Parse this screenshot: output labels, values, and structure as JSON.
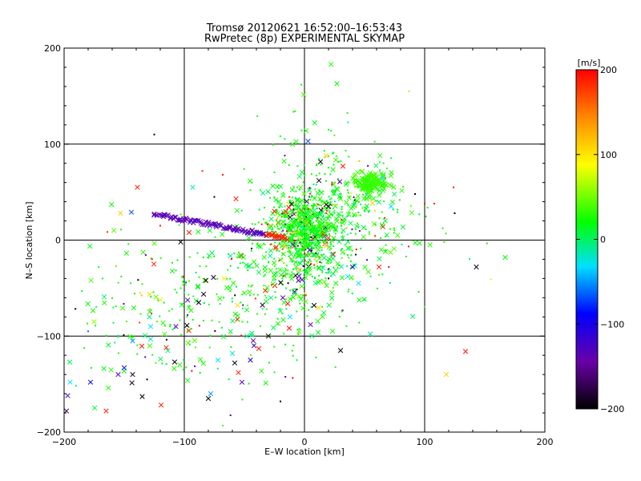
{
  "chart_data": {
    "type": "scatter",
    "title_line1": "Tromsø 20120621 16:52:00–16:53:43",
    "title_line2": "RwPretec (8p) EXPERIMENTAL SKYMAP",
    "xlabel": "E–W location [km]",
    "ylabel": "N–S location [km]",
    "xlim": [
      -200,
      200
    ],
    "ylim": [
      -200,
      200
    ],
    "xticks": [
      -200,
      -100,
      0,
      100,
      200
    ],
    "yticks": [
      -200,
      -100,
      0,
      100,
      200
    ],
    "xtick_labels": [
      "−200",
      "−100",
      "0",
      "100",
      "200"
    ],
    "ytick_labels": [
      "−200",
      "−100",
      "0",
      "100",
      "200"
    ],
    "grid": true,
    "colorbar": {
      "label": "[m/s]",
      "range": [
        -200,
        200
      ],
      "ticks": [
        200,
        100,
        0,
        -100,
        -200
      ],
      "tick_labels": [
        "200",
        "100",
        "0",
        "−100",
        "−200"
      ],
      "colors": [
        "#000000",
        "#6a00a8",
        "#0000ff",
        "#00e0ff",
        "#00ff00",
        "#ffff00",
        "#ff8800",
        "#ff0000"
      ]
    },
    "points": [
      {
        "x": -198,
        "y": -178,
        "v": -180,
        "m": "x"
      },
      {
        "x": -197,
        "y": -162,
        "v": -140,
        "m": "x"
      },
      {
        "x": -195,
        "y": -148,
        "v": -40,
        "m": "x"
      },
      {
        "x": -178,
        "y": -148,
        "v": -100,
        "m": "x"
      },
      {
        "x": -175,
        "y": -85,
        "v": 60,
        "m": "x"
      },
      {
        "x": -165,
        "y": -178,
        "v": 190,
        "m": "x"
      },
      {
        "x": -155,
        "y": -140,
        "v": -150,
        "m": "x"
      },
      {
        "x": -150,
        "y": -133,
        "v": -110,
        "m": "x"
      },
      {
        "x": -143,
        "y": -140,
        "v": -190,
        "m": "x"
      },
      {
        "x": -135,
        "y": -163,
        "v": -200,
        "m": "x"
      },
      {
        "x": -143,
        "y": -105,
        "v": -60,
        "m": "x"
      },
      {
        "x": -153,
        "y": 28,
        "v": 120,
        "m": "x"
      },
      {
        "x": -144,
        "y": 29,
        "v": -80,
        "m": "x"
      },
      {
        "x": -139,
        "y": 55,
        "v": 190,
        "m": "x"
      },
      {
        "x": -129,
        "y": -80,
        "v": -20,
        "m": "x"
      },
      {
        "x": -128,
        "y": -90,
        "v": -40,
        "m": "x"
      },
      {
        "x": -128,
        "y": -103,
        "v": -30,
        "m": "x"
      },
      {
        "x": -120,
        "y": -62,
        "v": 110,
        "m": "x"
      },
      {
        "x": -115,
        "y": -112,
        "v": 190,
        "m": "x"
      },
      {
        "x": -108,
        "y": -127,
        "v": -200,
        "m": "x"
      },
      {
        "x": -107,
        "y": -90,
        "v": -150,
        "m": "x"
      },
      {
        "x": -103,
        "y": -2,
        "v": -200,
        "m": "x"
      },
      {
        "x": -96,
        "y": 8,
        "v": 190,
        "m": "x"
      },
      {
        "x": -93,
        "y": 55,
        "v": -30,
        "m": "x"
      },
      {
        "x": -88,
        "y": -65,
        "v": -200,
        "m": "x"
      },
      {
        "x": -82,
        "y": -42,
        "v": -200,
        "m": "x"
      },
      {
        "x": -80,
        "y": -165,
        "v": -200,
        "m": "x"
      },
      {
        "x": -78,
        "y": -160,
        "v": -60,
        "m": "x"
      },
      {
        "x": -72,
        "y": -125,
        "v": -40,
        "m": "x"
      },
      {
        "x": -67,
        "y": -40,
        "v": 110,
        "m": "x"
      },
      {
        "x": -60,
        "y": -118,
        "v": -30,
        "m": "x"
      },
      {
        "x": -58,
        "y": -128,
        "v": -200,
        "m": "x"
      },
      {
        "x": -55,
        "y": -138,
        "v": 190,
        "m": "x"
      },
      {
        "x": -52,
        "y": -148,
        "v": -150,
        "m": "x"
      },
      {
        "x": -57,
        "y": 43,
        "v": 190,
        "m": "x"
      },
      {
        "x": -48,
        "y": -100,
        "v": -20,
        "m": "x"
      },
      {
        "x": -45,
        "y": -125,
        "v": -120,
        "m": "x"
      },
      {
        "x": -42,
        "y": -110,
        "v": -150,
        "m": "x"
      },
      {
        "x": -38,
        "y": -113,
        "v": 190,
        "m": "x"
      },
      {
        "x": -30,
        "y": -100,
        "v": -200,
        "m": "x"
      },
      {
        "x": -28,
        "y": -60,
        "v": -20,
        "m": "x"
      },
      {
        "x": -25,
        "y": 30,
        "v": 190,
        "m": "x"
      },
      {
        "x": -18,
        "y": -60,
        "v": -150,
        "m": "x"
      },
      {
        "x": -12,
        "y": -80,
        "v": -40,
        "m": "x"
      },
      {
        "x": -5,
        "y": -42,
        "v": -150,
        "m": "x"
      },
      {
        "x": 3,
        "y": 103,
        "v": -80,
        "m": "x"
      },
      {
        "x": 5,
        "y": -88,
        "v": -150,
        "m": "x"
      },
      {
        "x": 8,
        "y": -68,
        "v": -200,
        "m": "x"
      },
      {
        "x": 12,
        "y": 62,
        "v": -200,
        "m": "x"
      },
      {
        "x": 18,
        "y": 88,
        "v": 120,
        "m": "x"
      },
      {
        "x": 20,
        "y": 35,
        "v": -200,
        "m": "x"
      },
      {
        "x": 27,
        "y": 163,
        "v": 0,
        "m": "x"
      },
      {
        "x": 30,
        "y": -115,
        "v": -200,
        "m": "x"
      },
      {
        "x": 32,
        "y": 77,
        "v": 190,
        "m": "x"
      },
      {
        "x": 36,
        "y": -38,
        "v": -40,
        "m": "x"
      },
      {
        "x": 40,
        "y": -28,
        "v": -120,
        "m": "x"
      },
      {
        "x": 45,
        "y": -45,
        "v": -40,
        "m": "x"
      },
      {
        "x": 62,
        "y": -28,
        "v": 190,
        "m": "x"
      },
      {
        "x": 65,
        "y": 65,
        "v": -40,
        "m": "x"
      },
      {
        "x": 72,
        "y": 35,
        "v": -40,
        "m": "x"
      },
      {
        "x": 118,
        "y": -140,
        "v": 120,
        "m": "x"
      },
      {
        "x": 134,
        "y": -116,
        "v": 190,
        "m": "x"
      },
      {
        "x": 143,
        "y": -28,
        "v": -200,
        "m": "x"
      },
      {
        "x": 167,
        "y": -18,
        "v": 0,
        "m": "x"
      },
      {
        "x": -180,
        "y": -95,
        "v": -70,
        "m": "."
      },
      {
        "x": -125,
        "y": 110,
        "v": -200,
        "m": "."
      },
      {
        "x": -120,
        "y": 15,
        "v": 190,
        "m": "."
      },
      {
        "x": -85,
        "y": 72,
        "v": 190,
        "m": "."
      },
      {
        "x": -75,
        "y": 45,
        "v": -200,
        "m": "."
      },
      {
        "x": -68,
        "y": 68,
        "v": 190,
        "m": "."
      },
      {
        "x": 20,
        "y": 115,
        "v": 0,
        "m": "."
      },
      {
        "x": 87,
        "y": 155,
        "v": 60,
        "m": "."
      },
      {
        "x": 92,
        "y": 48,
        "v": -200,
        "m": "."
      },
      {
        "x": 100,
        "y": 38,
        "v": 190,
        "m": "."
      },
      {
        "x": 108,
        "y": 38,
        "v": 190,
        "m": "."
      },
      {
        "x": 124,
        "y": 55,
        "v": 190,
        "m": "."
      },
      {
        "x": 125,
        "y": 28,
        "v": -200,
        "m": "."
      },
      {
        "x": -20,
        "y": -168,
        "v": -200,
        "m": "."
      }
    ],
    "cloud": {
      "color_mix": [
        {
          "v": 0,
          "w": 18
        },
        {
          "v": 20,
          "w": 8
        },
        {
          "v": -10,
          "w": 5
        },
        {
          "v": 190,
          "w": 2
        },
        {
          "v": -200,
          "w": 1
        },
        {
          "v": 120,
          "w": 1
        },
        {
          "v": -150,
          "w": 1
        }
      ],
      "clusters": [
        {
          "cx": 0,
          "cy": 10,
          "sx": 15,
          "sy": 18,
          "n": 650,
          "m": "mix"
        },
        {
          "cx": -10,
          "cy": -20,
          "sx": 30,
          "sy": 30,
          "n": 260,
          "m": "mix"
        },
        {
          "cx": 35,
          "cy": 40,
          "sx": 25,
          "sy": 20,
          "n": 150,
          "m": "mix"
        },
        {
          "cx": 55,
          "cy": 60,
          "sx": 7,
          "sy": 6,
          "n": 120,
          "m": "x"
        },
        {
          "cx": -60,
          "cy": -65,
          "sx": 50,
          "sy": 40,
          "n": 230,
          "m": "mix"
        },
        {
          "cx": 10,
          "cy": 80,
          "sx": 30,
          "sy": 40,
          "n": 80,
          "m": "mix"
        },
        {
          "cx": -120,
          "cy": -90,
          "sx": 40,
          "sy": 40,
          "n": 90,
          "m": "mix"
        },
        {
          "cx": 60,
          "cy": 0,
          "sx": 35,
          "sy": 35,
          "n": 90,
          "m": "mix"
        }
      ],
      "streak": {
        "x0": -125,
        "y0": 27,
        "x1": -15,
        "y1": 2,
        "n": 110,
        "v_start": -150,
        "v_end": 190
      }
    }
  }
}
